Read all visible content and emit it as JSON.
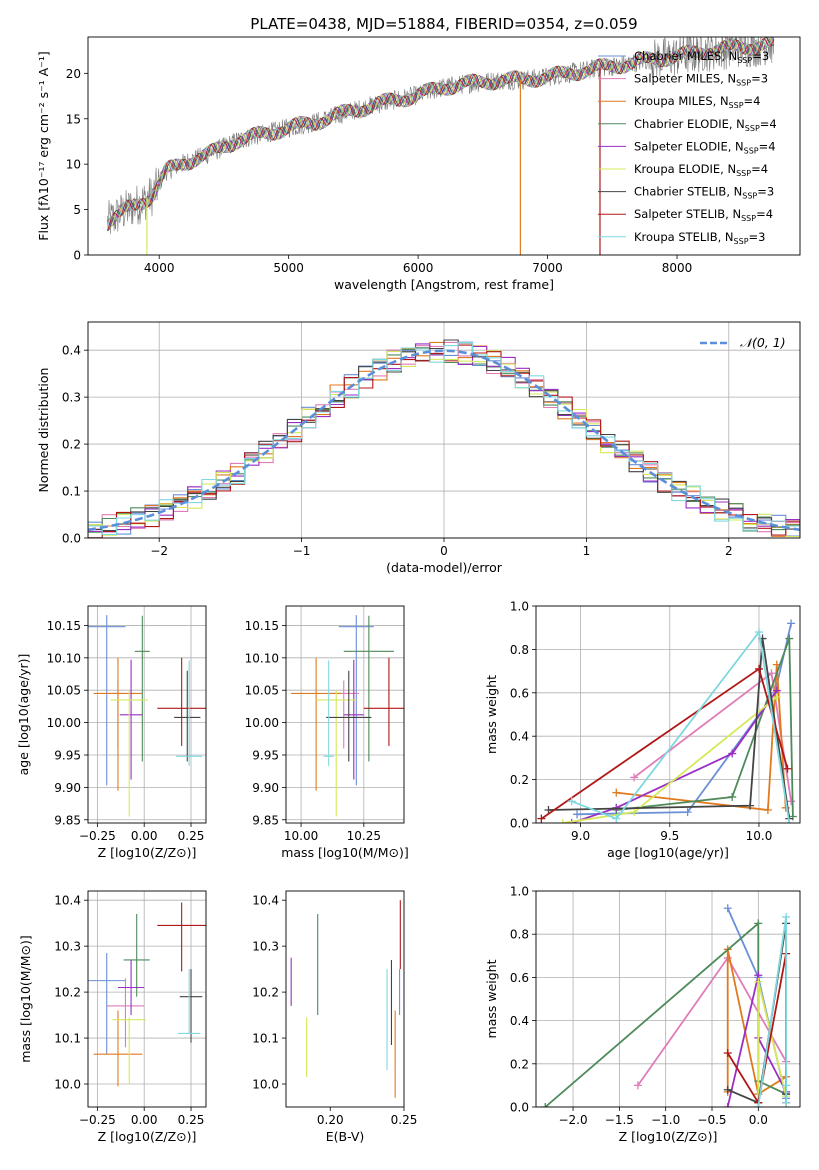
{
  "figure": {
    "title": "PLATE=0438, MJD=51884, FIBERID=0354, z=0.059"
  },
  "colors": {
    "c1": "#6a8fd8",
    "c2": "#e07cb8",
    "c3": "#e07a20",
    "c4": "#4f8a5b",
    "c5": "#9a2fc4",
    "c6": "#d6e85a",
    "c7": "#444444",
    "c8": "#b01818",
    "c9": "#7fd8e0",
    "data_gray": "#777777",
    "normal": "#5b8fd9"
  },
  "chart_data": [
    {
      "id": "spectrum",
      "type": "line",
      "xlabel": "wavelength [Angstrom, rest frame]",
      "ylabel": "Flux [fλ10⁻¹⁷ erg cm⁻² s⁻¹ A⁻¹]",
      "xlim": [
        3450,
        8950
      ],
      "ylim": [
        0,
        24
      ],
      "xticks": [
        4000,
        5000,
        6000,
        7000,
        8000
      ],
      "yticks": [
        0,
        5,
        10,
        15,
        20
      ],
      "grid": false,
      "legend_position": "right",
      "continuum": {
        "x": [
          3600,
          3700,
          3850,
          3950,
          4050,
          4200,
          4400,
          4600,
          4800,
          5000,
          5200,
          5400,
          5600,
          5800,
          6000,
          6200,
          6400,
          6600,
          6800,
          7000,
          7200,
          7400,
          7600,
          7800,
          8000,
          8200,
          8400,
          8600,
          8750
        ],
        "y": [
          3.6,
          4.6,
          5.7,
          6.6,
          9.2,
          10.2,
          11.2,
          12.6,
          13.3,
          14.0,
          14.6,
          15.5,
          16.3,
          17.0,
          17.6,
          18.5,
          18.9,
          19.2,
          19.3,
          19.6,
          20.1,
          20.6,
          21.0,
          21.5,
          21.9,
          22.4,
          22.8,
          23.0,
          23.3
        ]
      },
      "series": [
        {
          "name": "Chabrier MILES, N_SSP=3",
          "label_main": "Chabrier MILES, N",
          "label_sub": "SSP",
          "label_end": "=3",
          "color": "c1"
        },
        {
          "name": "Salpeter MILES, N_SSP=3",
          "label_main": "Salpeter MILES, N",
          "label_sub": "SSP",
          "label_end": "=3",
          "color": "c2"
        },
        {
          "name": "Kroupa MILES, N_SSP=4",
          "label_main": "Kroupa MILES, N",
          "label_sub": "SSP",
          "label_end": "=4",
          "color": "c3"
        },
        {
          "name": "Chabrier ELODIE, N_SSP=4",
          "label_main": "Chabrier ELODIE, N",
          "label_sub": "SSP",
          "label_end": "=4",
          "color": "c4"
        },
        {
          "name": "Salpeter ELODIE, N_SSP=4",
          "label_main": "Salpeter ELODIE, N",
          "label_sub": "SSP",
          "label_end": "=4",
          "color": "c5"
        },
        {
          "name": "Kroupa ELODIE, N_SSP=4",
          "label_main": "Kroupa ELODIE, N",
          "label_sub": "SSP",
          "label_end": "=4",
          "color": "c6"
        },
        {
          "name": "Chabrier STELIB, N_SSP=3",
          "label_main": "Chabrier STELIB, N",
          "label_sub": "SSP",
          "label_end": "=3",
          "color": "c7"
        },
        {
          "name": "Salpeter STELIB, N_SSP=4",
          "label_main": "Salpeter STELIB, N",
          "label_sub": "SSP",
          "label_end": "=4",
          "color": "c8"
        },
        {
          "name": "Kroupa STELIB, N_SSP=3",
          "label_main": "Kroupa STELIB, N",
          "label_sub": "SSP",
          "label_end": "=3",
          "color": "c9"
        }
      ]
    },
    {
      "id": "residuals",
      "type": "histogram",
      "xlabel": "(data-model)/error",
      "ylabel": "Normed distribution",
      "xlim": [
        -2.5,
        2.5
      ],
      "ylim": [
        0,
        0.46
      ],
      "xticks": [
        -2,
        -1,
        0,
        1,
        2
      ],
      "yticks": [
        0.0,
        0.1,
        0.2,
        0.3,
        0.4
      ],
      "grid": true,
      "legend_position": "top-right",
      "reference": {
        "name": "N(0,1)",
        "label": "𝒩(0, 1)",
        "mean": 0,
        "sigma": 1
      },
      "bin_width": 0.1
    },
    {
      "id": "age_vs_Z",
      "type": "errorbar",
      "xlabel": "Z [log10(Z/Z⊙)]",
      "ylabel": "age [log10(age/yr)]",
      "xlim": [
        -0.3,
        0.33
      ],
      "ylim": [
        9.845,
        10.18
      ],
      "xticks": [
        -0.25,
        0.0,
        0.25
      ],
      "yticks": [
        9.85,
        9.9,
        9.95,
        10.0,
        10.05,
        10.1,
        10.15
      ],
      "grid": true,
      "points": [
        {
          "color": "c1",
          "x": -0.2,
          "xerr": 0.1,
          "y": 10.148,
          "yerr": [
            0.245,
            0.018
          ]
        },
        {
          "color": "c2",
          "x": -0.14,
          "xerr": 0.04,
          "y": 10.045,
          "yerr": [
            0.085,
            0.02
          ]
        },
        {
          "color": "c3",
          "x": -0.14,
          "xerr": 0.13,
          "y": 10.045,
          "yerr": [
            0.15,
            0.055
          ]
        },
        {
          "color": "c4",
          "x": -0.01,
          "xerr": 0.04,
          "y": 10.11,
          "yerr": [
            0.17,
            0.055
          ]
        },
        {
          "color": "c5",
          "x": -0.07,
          "xerr": 0.06,
          "y": 10.012,
          "yerr": [
            0.1,
            0.085
          ]
        },
        {
          "color": "c6",
          "x": -0.08,
          "xerr": 0.1,
          "y": 10.035,
          "yerr": [
            0.18,
            0.015
          ]
        },
        {
          "color": "c7",
          "x": 0.23,
          "xerr": 0.07,
          "y": 10.008,
          "yerr": [
            0.068,
            0.072
          ]
        },
        {
          "color": "c8",
          "x": 0.2,
          "xerr": 0.13,
          "y": 10.022,
          "yerr": [
            0.058,
            0.078
          ]
        },
        {
          "color": "c9",
          "x": 0.24,
          "xerr": 0.07,
          "y": 9.948,
          "yerr": [
            0.015,
            0.148
          ]
        }
      ]
    },
    {
      "id": "age_vs_mass",
      "type": "errorbar",
      "xlabel": "mass [log10(M/M⊙)]",
      "ylabel": "",
      "xlim": [
        9.94,
        10.41
      ],
      "ylim": [
        9.845,
        10.18
      ],
      "xticks": [
        10.0,
        10.25
      ],
      "yticks": [
        9.85,
        9.9,
        9.95,
        10.0,
        10.05,
        10.1,
        10.15
      ],
      "grid": true,
      "points": [
        {
          "color": "c1",
          "x": 10.22,
          "xerr": 0.07,
          "y": 10.148,
          "yerr": [
            0.245,
            0.018
          ]
        },
        {
          "color": "c2",
          "x": 10.17,
          "xerr": 0.06,
          "y": 10.045,
          "yerr": [
            0.085,
            0.02
          ]
        },
        {
          "color": "c3",
          "x": 10.06,
          "xerr": 0.1,
          "y": 10.045,
          "yerr": [
            0.15,
            0.055
          ]
        },
        {
          "color": "c4",
          "x": 10.27,
          "xerr": 0.1,
          "y": 10.11,
          "yerr": [
            0.17,
            0.055
          ]
        },
        {
          "color": "c5",
          "x": 10.21,
          "xerr": 0.04,
          "y": 10.012,
          "yerr": [
            0.1,
            0.085
          ]
        },
        {
          "color": "c6",
          "x": 10.14,
          "xerr": 0.08,
          "y": 10.035,
          "yerr": [
            0.18,
            0.015
          ]
        },
        {
          "color": "c7",
          "x": 10.19,
          "xerr": 0.09,
          "y": 10.008,
          "yerr": [
            0.068,
            0.072
          ]
        },
        {
          "color": "c8",
          "x": 10.35,
          "xerr": 0.1,
          "y": 10.022,
          "yerr": [
            0.058,
            0.078
          ]
        },
        {
          "color": "c9",
          "x": 10.11,
          "xerr": 0.02,
          "y": 9.948,
          "yerr": [
            0.015,
            0.148
          ]
        }
      ]
    },
    {
      "id": "mass_vs_Z",
      "type": "errorbar",
      "xlabel": "Z [log10(Z/Z⊙)]",
      "ylabel": "mass [log10(M/M⊙)]",
      "xlim": [
        -0.3,
        0.33
      ],
      "ylim": [
        9.95,
        10.42
      ],
      "xticks": [
        -0.25,
        0.0,
        0.25
      ],
      "yticks": [
        10.0,
        10.1,
        10.2,
        10.3,
        10.4
      ],
      "grid": true,
      "points": [
        {
          "color": "c1",
          "x": -0.2,
          "xerr": 0.1,
          "y": 10.225,
          "yerr": [
            0.16,
            0.06
          ]
        },
        {
          "color": "c2",
          "x": -0.1,
          "xerr": 0.1,
          "y": 10.17,
          "yerr": [
            0.09,
            0.06
          ]
        },
        {
          "color": "c3",
          "x": -0.14,
          "xerr": 0.13,
          "y": 10.065,
          "yerr": [
            0.07,
            0.095
          ]
        },
        {
          "color": "c4",
          "x": -0.04,
          "xerr": 0.07,
          "y": 10.27,
          "yerr": [
            0.08,
            0.1
          ]
        },
        {
          "color": "c5",
          "x": -0.07,
          "xerr": 0.07,
          "y": 10.21,
          "yerr": [
            0.06,
            0.06
          ]
        },
        {
          "color": "c6",
          "x": -0.08,
          "xerr": 0.09,
          "y": 10.14,
          "yerr": [
            0.14,
            0.005
          ]
        },
        {
          "color": "c7",
          "x": 0.25,
          "xerr": 0.06,
          "y": 10.19,
          "yerr": [
            0.1,
            0.06
          ]
        },
        {
          "color": "c8",
          "x": 0.2,
          "xerr": 0.13,
          "y": 10.345,
          "yerr": [
            0.1,
            0.05
          ]
        },
        {
          "color": "c9",
          "x": 0.24,
          "xerr": 0.06,
          "y": 10.11,
          "yerr": [
            0.0,
            0.14
          ]
        }
      ]
    },
    {
      "id": "mass_vs_EBV",
      "type": "errorbar",
      "xlabel": "E(B-V)",
      "ylabel": "",
      "xlim": [
        0.17,
        0.25
      ],
      "ylim": [
        9.95,
        10.42
      ],
      "xticks": [
        0.2,
        0.25
      ],
      "yticks": [
        10.0,
        10.1,
        10.2,
        10.3,
        10.4
      ],
      "grid": false,
      "points": [
        {
          "color": "c5",
          "x": 0.1735,
          "xerr": 0,
          "y": 10.22,
          "yerr": [
            0.05,
            0.055
          ]
        },
        {
          "color": "c6",
          "x": 0.184,
          "xerr": 0,
          "y": 10.065,
          "yerr": [
            0.05,
            0.08
          ]
        },
        {
          "color": "c4",
          "x": 0.1915,
          "xerr": 0,
          "y": 10.26,
          "yerr": [
            0.11,
            0.11
          ]
        },
        {
          "color": "c9",
          "x": 0.2385,
          "xerr": 0,
          "y": 10.14,
          "yerr": [
            0.11,
            0.11
          ]
        },
        {
          "color": "c7",
          "x": 0.2415,
          "xerr": 0,
          "y": 10.13,
          "yerr": [
            0.045,
            0.14
          ]
        },
        {
          "color": "c3",
          "x": 0.244,
          "xerr": 0,
          "y": 10.06,
          "yerr": [
            0.09,
            0.1
          ]
        },
        {
          "color": "c1",
          "x": 0.247,
          "xerr": 0,
          "y": 10.2,
          "yerr": [
            0.05,
            0.05
          ]
        },
        {
          "color": "c8",
          "x": 0.2475,
          "xerr": 0,
          "y": 10.3,
          "yerr": [
            0.05,
            0.1
          ]
        }
      ]
    },
    {
      "id": "weight_vs_age",
      "type": "line",
      "xlabel": "age [log10(age/yr)]",
      "ylabel": "mass weight",
      "xlim": [
        8.75,
        10.23
      ],
      "ylim": [
        0,
        1.0
      ],
      "xticks": [
        9.0,
        9.5,
        10.0
      ],
      "yticks": [
        0.0,
        0.2,
        0.4,
        0.6,
        0.8,
        1.0
      ],
      "grid": true,
      "series": [
        {
          "color": "c1",
          "x": [
            8.98,
            9.6,
            10.09,
            10.18
          ],
          "y": [
            0.04,
            0.05,
            0.6,
            0.92
          ]
        },
        {
          "color": "c2",
          "x": [
            9.3,
            10.07,
            10.18
          ],
          "y": [
            0.21,
            0.69,
            0.1
          ]
        },
        {
          "color": "c3",
          "x": [
            9.2,
            10.05,
            10.1,
            10.15
          ],
          "y": [
            0.14,
            0.06,
            0.73,
            0.07
          ]
        },
        {
          "color": "c4",
          "x": [
            9.2,
            9.85,
            10.17,
            10.19
          ],
          "y": [
            0.06,
            0.12,
            0.85,
            0.03
          ]
        },
        {
          "color": "c5",
          "x": [
            8.95,
            9.2,
            9.85,
            10.1
          ],
          "y": [
            0.0,
            0.07,
            0.32,
            0.61
          ]
        },
        {
          "color": "c6",
          "x": [
            8.9,
            9.3,
            10.1
          ],
          "y": [
            0.0,
            0.05,
            0.58
          ]
        },
        {
          "color": "c7",
          "x": [
            8.82,
            9.95,
            10.02,
            10.17
          ],
          "y": [
            0.06,
            0.08,
            0.85,
            0.02
          ]
        },
        {
          "color": "c8",
          "x": [
            8.78,
            10.0,
            10.16
          ],
          "y": [
            0.02,
            0.71,
            0.25
          ]
        },
        {
          "color": "c9",
          "x": [
            8.95,
            9.2,
            10.0,
            10.17
          ],
          "y": [
            0.1,
            0.02,
            0.88,
            0.0
          ]
        }
      ]
    },
    {
      "id": "weight_vs_Z",
      "type": "line",
      "xlabel": "Z [log10(Z/Z⊙)]",
      "ylabel": "mass weight",
      "xlim": [
        -2.4,
        0.45
      ],
      "ylim": [
        0,
        1.0
      ],
      "xticks": [
        -2.0,
        -1.5,
        -1.0,
        -0.5,
        0.0
      ],
      "yticks": [
        0.0,
        0.2,
        0.4,
        0.6,
        0.8,
        1.0
      ],
      "grid": true,
      "series": [
        {
          "color": "c1",
          "x": [
            -0.33,
            0.0,
            0.3
          ],
          "y": [
            0.92,
            0.6,
            0.04
          ]
        },
        {
          "color": "c2",
          "x": [
            -1.3,
            -0.33,
            0.3
          ],
          "y": [
            0.1,
            0.69,
            0.21
          ]
        },
        {
          "color": "c3",
          "x": [
            -0.33,
            -0.33,
            0.0,
            0.3
          ],
          "y": [
            0.07,
            0.73,
            0.06,
            0.14
          ]
        },
        {
          "color": "c4",
          "x": [
            -2.3,
            0.0,
            0.0,
            0.3
          ],
          "y": [
            0.0,
            0.85,
            0.12,
            0.06
          ]
        },
        {
          "color": "c5",
          "x": [
            -0.33,
            0.0,
            0.0,
            0.3
          ],
          "y": [
            0.0,
            0.61,
            0.32,
            0.07
          ]
        },
        {
          "color": "c6",
          "x": [
            0.0,
            0.0,
            0.3
          ],
          "y": [
            0.0,
            0.58,
            0.05
          ]
        },
        {
          "color": "c7",
          "x": [
            -0.33,
            0.0,
            0.3,
            0.3
          ],
          "y": [
            0.08,
            0.02,
            0.85,
            0.06
          ]
        },
        {
          "color": "c8",
          "x": [
            -0.33,
            0.0,
            0.3,
            0.3
          ],
          "y": [
            0.25,
            0.02,
            0.71,
            0.02
          ]
        },
        {
          "color": "c9",
          "x": [
            0.0,
            0.3,
            0.3,
            0.3
          ],
          "y": [
            0.0,
            0.88,
            0.1,
            0.02
          ]
        }
      ]
    }
  ]
}
